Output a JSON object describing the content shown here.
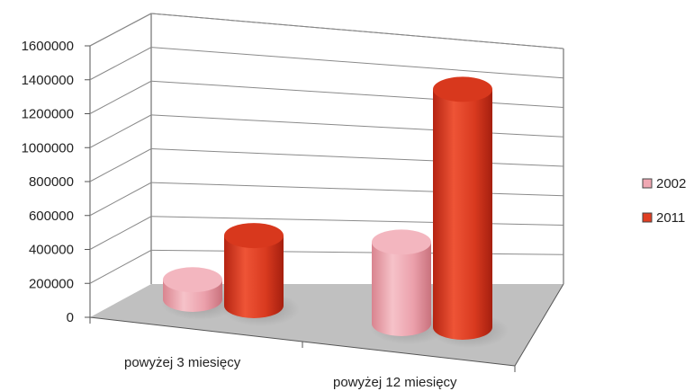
{
  "chart_data": {
    "type": "bar",
    "style": "3d-cylinder",
    "categories": [
      "powyżej 3 miesięcy",
      "powyżej 12 miesięcy"
    ],
    "series": [
      {
        "name": "2002",
        "values": [
          120000,
          500000
        ],
        "color": "#f0a8b3"
      },
      {
        "name": "2011",
        "values": [
          430000,
          1460000
        ],
        "color": "#e03e22"
      }
    ],
    "yticks": [
      0,
      200000,
      400000,
      600000,
      800000,
      1000000,
      1200000,
      1400000,
      1600000
    ],
    "ylim": [
      0,
      1600000
    ],
    "grid": true,
    "legend_position": "right",
    "floor_color": "#c0c0c0"
  }
}
